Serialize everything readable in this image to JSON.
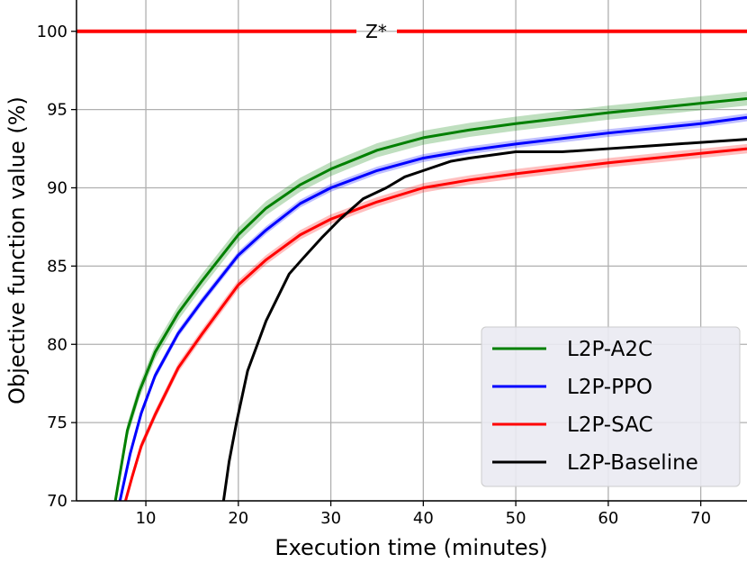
{
  "chart_data": {
    "type": "line",
    "title": "",
    "xlabel": "Execution time (minutes)",
    "ylabel": "Objective function value (%)",
    "xlim": [
      2.5,
      75
    ],
    "ylim": [
      70,
      102
    ],
    "xticks": [
      10,
      20,
      30,
      40,
      50,
      60,
      70
    ],
    "yticks": [
      70,
      75,
      80,
      85,
      90,
      95,
      100
    ],
    "grid": true,
    "legend_position": "bottom-right",
    "reference_line": {
      "label": "Z*",
      "y": 100,
      "color": "#ff0000"
    },
    "series": [
      {
        "name": "L2P-A2C",
        "color": "#008000",
        "band": 0.45,
        "x": [
          6.7,
          8,
          9.3,
          11,
          13.5,
          16,
          20,
          23,
          26.7,
          30,
          35,
          40,
          45,
          50,
          60,
          70,
          75
        ],
        "y": [
          70,
          74.5,
          77,
          79.5,
          82,
          84,
          87,
          88.7,
          90.2,
          91.2,
          92.4,
          93.2,
          93.7,
          94.1,
          94.8,
          95.4,
          95.7
        ]
      },
      {
        "name": "L2P-PPO",
        "color": "#0000ff",
        "band": 0.25,
        "x": [
          7.2,
          8.3,
          9.5,
          11,
          13.5,
          16,
          20,
          23,
          26.7,
          30,
          35,
          40,
          45,
          50,
          60,
          70,
          75
        ],
        "y": [
          70,
          73,
          75.6,
          78,
          80.7,
          82.7,
          85.7,
          87.3,
          89,
          90,
          91.1,
          91.9,
          92.4,
          92.8,
          93.5,
          94.1,
          94.5
        ]
      },
      {
        "name": "L2P-SAC",
        "color": "#ff0000",
        "band": 0.3,
        "x": [
          7.8,
          8.5,
          9.5,
          11,
          13.5,
          16,
          20,
          23,
          26.7,
          30,
          35,
          40,
          45,
          50,
          60,
          70,
          75
        ],
        "y": [
          70,
          71.5,
          73.5,
          75.5,
          78.5,
          80.6,
          83.8,
          85.4,
          87,
          88,
          89.1,
          90,
          90.5,
          90.9,
          91.6,
          92.2,
          92.5
        ]
      },
      {
        "name": "L2P-Baseline",
        "color": "#000000",
        "band": 0,
        "x": [
          18.4,
          19,
          19.8,
          21,
          23,
          25.5,
          27,
          29,
          31,
          33.5,
          36,
          38,
          40,
          43,
          45,
          50,
          55,
          60,
          65,
          70,
          75
        ],
        "y": [
          70,
          72.5,
          75,
          78.3,
          81.5,
          84.5,
          85.5,
          86.8,
          88,
          89.3,
          90,
          90.7,
          91.1,
          91.7,
          91.9,
          92.3,
          92.3,
          92.5,
          92.7,
          92.9,
          93.1
        ]
      }
    ]
  }
}
